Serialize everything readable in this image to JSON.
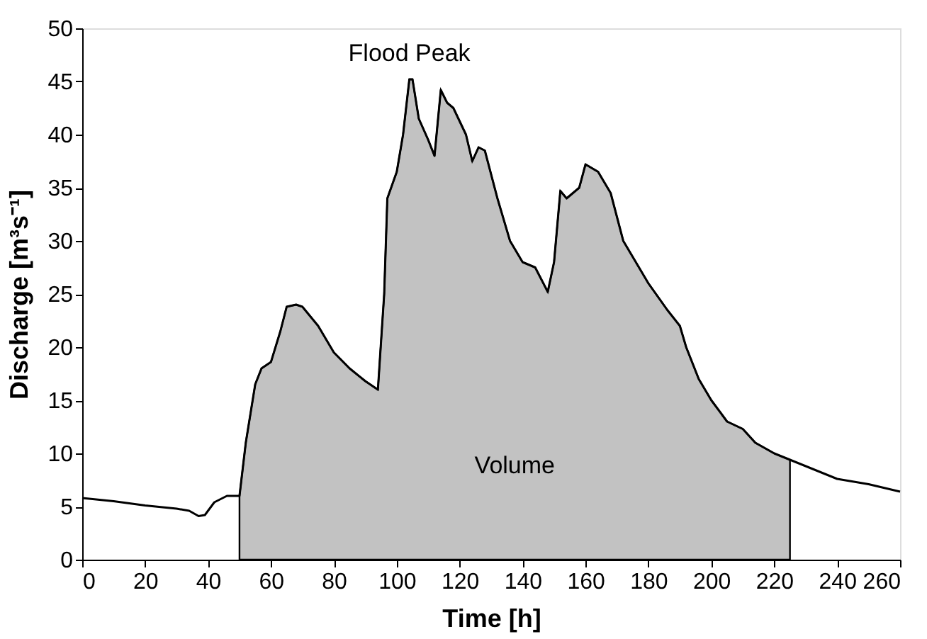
{
  "chart_data": {
    "type": "line",
    "xlabel": "Time [h]",
    "ylabel": "Discharge [m³s⁻¹]",
    "xlim": [
      0,
      260
    ],
    "xticks": [
      0,
      20,
      40,
      60,
      80,
      100,
      120,
      140,
      160,
      180,
      200,
      220,
      240,
      260
    ],
    "ylim": [
      0,
      50
    ],
    "yticks": [
      0,
      5,
      10,
      15,
      20,
      25,
      30,
      35,
      40,
      45,
      50
    ],
    "grid": false,
    "annotations": [
      "Flood Peak",
      "Volume"
    ],
    "series": [
      {
        "type": "area",
        "color": "#9a9a9a",
        "x": [
          50,
          52,
          55,
          57,
          60,
          63,
          65,
          68,
          70,
          75,
          80,
          85,
          90,
          94,
          96,
          97,
          100,
          102,
          104,
          105,
          107,
          110,
          112,
          114,
          116,
          118,
          122,
          124,
          126,
          128,
          132,
          136,
          140,
          144,
          148,
          150,
          152,
          154,
          158,
          160,
          164,
          168,
          172,
          176,
          180,
          186,
          190,
          192,
          196,
          200,
          205,
          210,
          214,
          220,
          225
        ],
        "values": [
          6,
          11,
          16.5,
          18,
          18.6,
          21.5,
          23.8,
          24,
          23.8,
          22,
          19.5,
          18,
          16.8,
          16,
          25,
          34,
          36.5,
          40,
          45.2,
          45.2,
          41.5,
          39.5,
          38,
          44.2,
          43,
          42.5,
          40,
          37.5,
          38.8,
          38.5,
          34,
          30,
          28,
          27.5,
          25.2,
          28,
          34.7,
          34,
          35,
          37.2,
          36.5,
          34.5,
          30,
          28,
          26,
          23.5,
          22,
          20,
          17,
          15,
          13,
          12.3,
          11,
          10,
          9.4
        ]
      },
      {
        "color": "#000000",
        "x": [
          0,
          10,
          20,
          30,
          34,
          37,
          39,
          42,
          46,
          50,
          52,
          55,
          57,
          60,
          63,
          65,
          68,
          70,
          75,
          80,
          85,
          90,
          94,
          96,
          97,
          100,
          102,
          104,
          105,
          107,
          110,
          112,
          114,
          116,
          118,
          122,
          124,
          126,
          128,
          132,
          136,
          140,
          144,
          148,
          150,
          152,
          154,
          158,
          160,
          164,
          168,
          172,
          176,
          180,
          186,
          190,
          192,
          196,
          200,
          205,
          210,
          214,
          220,
          225,
          230,
          240,
          250,
          260
        ],
        "values": [
          5.8,
          5.5,
          5.1,
          4.8,
          4.6,
          4.1,
          4.2,
          5.4,
          6,
          6,
          11,
          16.5,
          18,
          18.6,
          21.5,
          23.8,
          24,
          23.8,
          22,
          19.5,
          18,
          16.8,
          16,
          25,
          34,
          36.5,
          40,
          45.2,
          45.2,
          41.5,
          39.5,
          38,
          44.2,
          43,
          42.5,
          40,
          37.5,
          38.8,
          38.5,
          34,
          30,
          28,
          27.5,
          25.2,
          28,
          34.7,
          34,
          35,
          37.2,
          36.5,
          34.5,
          30,
          28,
          26,
          23.5,
          22,
          20,
          17,
          15,
          13,
          12.3,
          11,
          10,
          9.4,
          8.8,
          7.6,
          7.1,
          6.4
        ]
      }
    ]
  }
}
